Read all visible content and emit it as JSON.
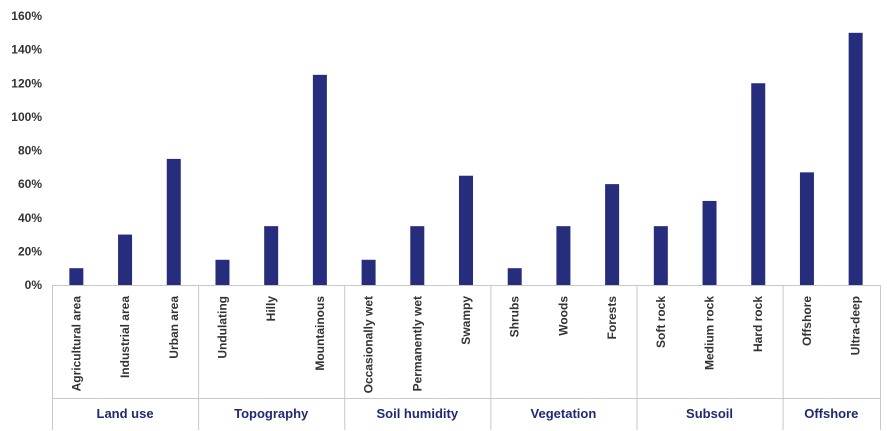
{
  "chart_data": {
    "type": "bar",
    "title": "",
    "xlabel": "",
    "ylabel": "",
    "ylim": [
      0,
      160
    ],
    "y_ticks": [
      "0%",
      "20%",
      "40%",
      "60%",
      "80%",
      "100%",
      "120%",
      "140%",
      "160%"
    ],
    "grid": false,
    "legend": "none",
    "bar_color": "#262d7c",
    "axis_color": "#c8c8c8",
    "groups": [
      {
        "name": "Land use",
        "categories": [
          "Agricultural area",
          "Industrial area",
          "Urban area"
        ],
        "values": [
          10,
          30,
          75
        ]
      },
      {
        "name": "Topography",
        "categories": [
          "Undulating",
          "Hilly",
          "Mountainous"
        ],
        "values": [
          15,
          35,
          125
        ]
      },
      {
        "name": "Soil humidity",
        "categories": [
          "Occasionally wet",
          "Permanently wet",
          "Swampy"
        ],
        "values": [
          15,
          35,
          65
        ]
      },
      {
        "name": "Vegetation",
        "categories": [
          "Shrubs",
          "Woods",
          "Forests"
        ],
        "values": [
          10,
          35,
          60
        ]
      },
      {
        "name": "Subsoil",
        "categories": [
          "Soft rock",
          "Medium rock",
          "Hard rock"
        ],
        "values": [
          35,
          50,
          120
        ]
      },
      {
        "name": "Offshore",
        "categories": [
          "Offshore",
          "Ultra-deep"
        ],
        "values": [
          67,
          150
        ]
      }
    ]
  }
}
